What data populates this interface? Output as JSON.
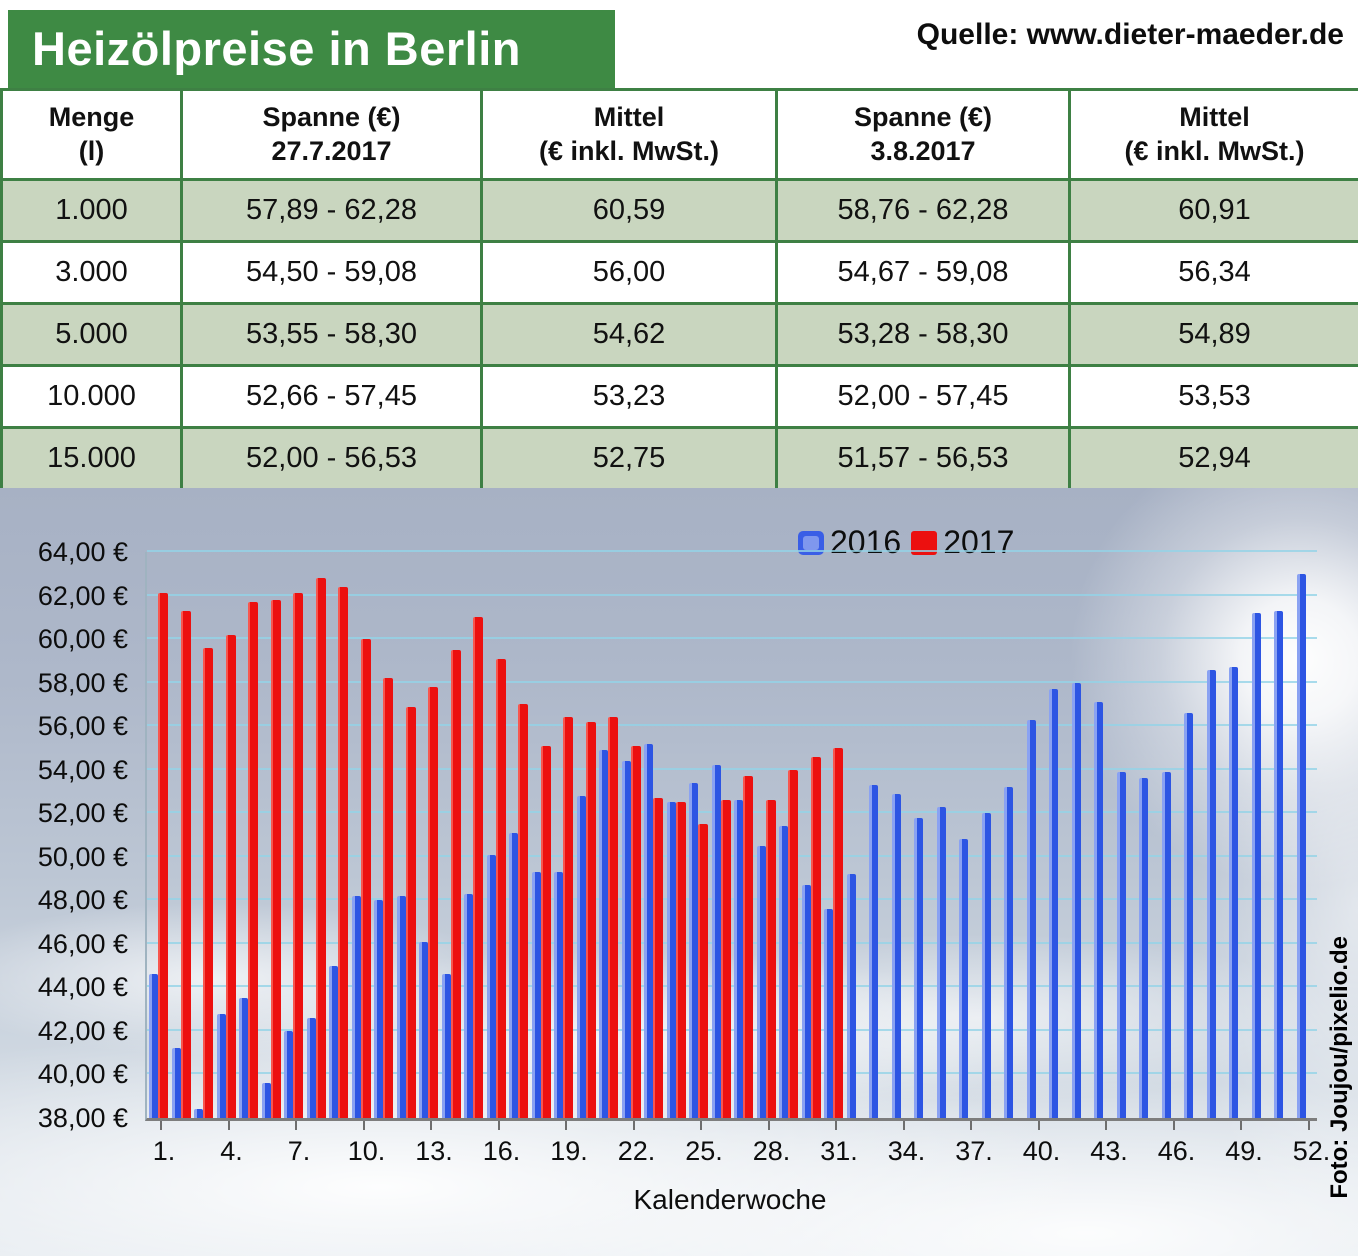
{
  "header": {
    "title": "Heizölpreise in Berlin",
    "source": "Quelle: www.dieter-maeder.de"
  },
  "photo_credit": "Foto: Joujou/pixelio.de",
  "colors": {
    "title_green": "#3e8a44",
    "table_border_green": "#3e8044",
    "table_row_green": "#c9d6bf",
    "bar_blue_2016": "#2d55e3",
    "bar_red_2017": "#ec100f",
    "gridline_cyan": "#94d3e7"
  },
  "table": {
    "columns": [
      {
        "line1": "Menge",
        "line2": "(l)"
      },
      {
        "line1": "Spanne (€)",
        "line2": "27.7.2017"
      },
      {
        "line1": "Mittel",
        "line2": "(€ inkl. MwSt.)"
      },
      {
        "line1": "Spanne (€)",
        "line2": "3.8.2017"
      },
      {
        "line1": "Mittel",
        "line2": "(€ inkl. MwSt.)"
      }
    ],
    "rows": [
      [
        "1.000",
        "57,89 - 62,28",
        "60,59",
        "58,76 - 62,28",
        "60,91"
      ],
      [
        "3.000",
        "54,50 - 59,08",
        "56,00",
        "54,67 - 59,08",
        "56,34"
      ],
      [
        "5.000",
        "53,55 - 58,30",
        "54,62",
        "53,28 - 58,30",
        "54,89"
      ],
      [
        "10.000",
        "52,66 - 57,45",
        "53,23",
        "52,00 - 57,45",
        "53,53"
      ],
      [
        "15.000",
        "52,00 - 56,53",
        "52,75",
        "51,57 - 56,53",
        "52,94"
      ]
    ]
  },
  "chart_data": {
    "type": "bar",
    "xlabel": "Kalenderwoche",
    "ylim": [
      38,
      64
    ],
    "y_tick_step": 2,
    "y_tick_labels": [
      "64,00 €",
      "62,00 €",
      "60,00 €",
      "58,00 €",
      "56,00 €",
      "54,00 €",
      "52,00 €",
      "50,00 €",
      "48,00 €",
      "46,00 €",
      "44,00 €",
      "42,00 €",
      "40,00 €",
      "38,00 €"
    ],
    "x_tick_labels": [
      "1.",
      "4.",
      "7.",
      "10.",
      "13.",
      "16.",
      "19.",
      "22.",
      "25.",
      "28.",
      "31.",
      "34.",
      "37.",
      "40.",
      "43.",
      "46.",
      "49.",
      "52."
    ],
    "x_tick_week_interval": 3,
    "categories_weeks": 52,
    "grid": true,
    "legend_position": "top-center",
    "series": [
      {
        "name": "2016",
        "color": "#2d55e3",
        "values": [
          44.6,
          41.2,
          38.4,
          42.8,
          43.5,
          39.6,
          42.0,
          42.6,
          45.0,
          48.2,
          48.0,
          48.2,
          46.1,
          44.6,
          48.3,
          50.1,
          51.1,
          49.3,
          49.3,
          52.8,
          54.9,
          54.4,
          55.2,
          52.5,
          53.4,
          54.2,
          52.6,
          50.5,
          51.4,
          48.7,
          47.6,
          49.2,
          53.3,
          52.9,
          51.8,
          52.3,
          50.8,
          52.0,
          53.2,
          56.3,
          57.7,
          58.0,
          57.1,
          53.9,
          53.6,
          53.9,
          56.6,
          58.6,
          58.7,
          61.2,
          61.3,
          63.0
        ]
      },
      {
        "name": "2017",
        "color": "#ec100f",
        "values": [
          62.1,
          61.3,
          59.6,
          60.2,
          61.7,
          61.8,
          62.1,
          62.8,
          62.4,
          60.0,
          58.2,
          56.9,
          57.8,
          59.5,
          61.0,
          59.1,
          57.0,
          55.1,
          56.4,
          56.2,
          56.4,
          55.1,
          52.7,
          52.5,
          51.5,
          52.6,
          53.7,
          52.6,
          54.0,
          54.6,
          55.0
        ]
      }
    ]
  }
}
